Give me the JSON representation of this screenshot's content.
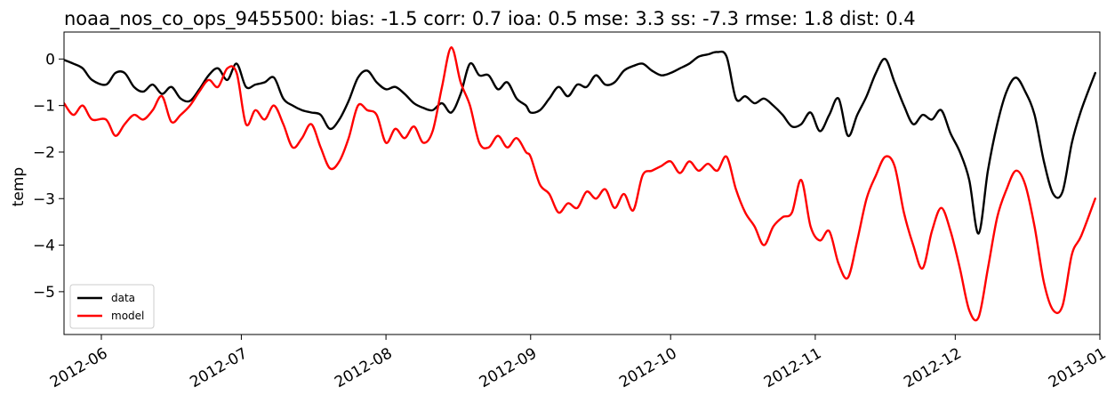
{
  "chart_data": {
    "type": "line",
    "title": "noaa_nos_co_ops_9455500: bias: -1.5  corr: 0.7  ioa: 0.5  mse: 3.3  ss: -7.3  rmse: 1.8  dist: 0.4",
    "xlabel": "",
    "ylabel": "temp",
    "xlim": [
      "2012-05-24",
      "2013-01-01"
    ],
    "ylim": [
      -5.92,
      0.58
    ],
    "x_ticks": [
      "2012-06-01",
      "2012-07-01",
      "2012-08-01",
      "2012-09-01",
      "2012-10-01",
      "2012-11-01",
      "2012-12-01",
      "2013-01-01"
    ],
    "x_tick_labels": [
      "2012-06",
      "2012-07",
      "2012-08",
      "2012-09",
      "2012-10",
      "2012-11",
      "2012-12",
      "2013-01"
    ],
    "y_ticks": [
      0,
      -1,
      -2,
      -3,
      -4,
      -5
    ],
    "y_tick_labels": [
      "0",
      "−1",
      "−2",
      "−3",
      "−4",
      "−5"
    ],
    "grid": false,
    "legend_position": "lower-left",
    "series": [
      {
        "name": "data",
        "color": "#000000",
        "points": [
          [
            "2012-05-24",
            -0.02
          ],
          [
            "2012-05-26",
            -0.1
          ],
          [
            "2012-05-28",
            -0.2
          ],
          [
            "2012-05-30",
            -0.45
          ],
          [
            "2012-06-02",
            -0.55
          ],
          [
            "2012-06-04",
            -0.3
          ],
          [
            "2012-06-06",
            -0.3
          ],
          [
            "2012-06-08",
            -0.6
          ],
          [
            "2012-06-10",
            -0.7
          ],
          [
            "2012-06-12",
            -0.55
          ],
          [
            "2012-06-14",
            -0.75
          ],
          [
            "2012-06-16",
            -0.6
          ],
          [
            "2012-06-18",
            -0.85
          ],
          [
            "2012-06-20",
            -0.9
          ],
          [
            "2012-06-22",
            -0.65
          ],
          [
            "2012-06-24",
            -0.35
          ],
          [
            "2012-06-26",
            -0.2
          ],
          [
            "2012-06-28",
            -0.45
          ],
          [
            "2012-06-30",
            -0.1
          ],
          [
            "2012-07-02",
            -0.6
          ],
          [
            "2012-07-04",
            -0.55
          ],
          [
            "2012-07-06",
            -0.5
          ],
          [
            "2012-07-08",
            -0.4
          ],
          [
            "2012-07-10",
            -0.85
          ],
          [
            "2012-07-12",
            -1.0
          ],
          [
            "2012-07-14",
            -1.1
          ],
          [
            "2012-07-16",
            -1.15
          ],
          [
            "2012-07-18",
            -1.2
          ],
          [
            "2012-07-20",
            -1.5
          ],
          [
            "2012-07-22",
            -1.3
          ],
          [
            "2012-07-24",
            -0.9
          ],
          [
            "2012-07-26",
            -0.4
          ],
          [
            "2012-07-28",
            -0.25
          ],
          [
            "2012-07-30",
            -0.5
          ],
          [
            "2012-08-01",
            -0.65
          ],
          [
            "2012-08-03",
            -0.6
          ],
          [
            "2012-08-05",
            -0.75
          ],
          [
            "2012-08-07",
            -0.95
          ],
          [
            "2012-08-09",
            -1.05
          ],
          [
            "2012-08-11",
            -1.1
          ],
          [
            "2012-08-13",
            -0.95
          ],
          [
            "2012-08-15",
            -1.15
          ],
          [
            "2012-08-17",
            -0.75
          ],
          [
            "2012-08-19",
            -0.1
          ],
          [
            "2012-08-21",
            -0.35
          ],
          [
            "2012-08-23",
            -0.35
          ],
          [
            "2012-08-25",
            -0.65
          ],
          [
            "2012-08-27",
            -0.5
          ],
          [
            "2012-08-29",
            -0.85
          ],
          [
            "2012-08-31",
            -1.0
          ],
          [
            "2012-09-01",
            -1.15
          ],
          [
            "2012-09-03",
            -1.1
          ],
          [
            "2012-09-05",
            -0.85
          ],
          [
            "2012-09-07",
            -0.6
          ],
          [
            "2012-09-09",
            -0.8
          ],
          [
            "2012-09-11",
            -0.55
          ],
          [
            "2012-09-13",
            -0.6
          ],
          [
            "2012-09-15",
            -0.35
          ],
          [
            "2012-09-17",
            -0.55
          ],
          [
            "2012-09-19",
            -0.5
          ],
          [
            "2012-09-21",
            -0.25
          ],
          [
            "2012-09-23",
            -0.15
          ],
          [
            "2012-09-25",
            -0.1
          ],
          [
            "2012-09-27",
            -0.25
          ],
          [
            "2012-09-29",
            -0.35
          ],
          [
            "2012-10-01",
            -0.3
          ],
          [
            "2012-10-03",
            -0.2
          ],
          [
            "2012-10-05",
            -0.1
          ],
          [
            "2012-10-07",
            0.05
          ],
          [
            "2012-10-09",
            0.1
          ],
          [
            "2012-10-11",
            0.15
          ],
          [
            "2012-10-13",
            0.05
          ],
          [
            "2012-10-15",
            -0.85
          ],
          [
            "2012-10-17",
            -0.8
          ],
          [
            "2012-10-19",
            -0.95
          ],
          [
            "2012-10-21",
            -0.85
          ],
          [
            "2012-10-23",
            -1.0
          ],
          [
            "2012-10-25",
            -1.2
          ],
          [
            "2012-10-27",
            -1.45
          ],
          [
            "2012-10-29",
            -1.4
          ],
          [
            "2012-10-31",
            -1.15
          ],
          [
            "2012-11-02",
            -1.55
          ],
          [
            "2012-11-04",
            -1.2
          ],
          [
            "2012-11-06",
            -0.85
          ],
          [
            "2012-11-08",
            -1.65
          ],
          [
            "2012-11-10",
            -1.2
          ],
          [
            "2012-11-12",
            -0.8
          ],
          [
            "2012-11-14",
            -0.3
          ],
          [
            "2012-11-16",
            0.0
          ],
          [
            "2012-11-18",
            -0.5
          ],
          [
            "2012-11-20",
            -1.0
          ],
          [
            "2012-11-22",
            -1.4
          ],
          [
            "2012-11-24",
            -1.2
          ],
          [
            "2012-11-26",
            -1.3
          ],
          [
            "2012-11-28",
            -1.1
          ],
          [
            "2012-11-30",
            -1.6
          ],
          [
            "2012-12-02",
            -2.0
          ],
          [
            "2012-12-04",
            -2.6
          ],
          [
            "2012-12-06",
            -3.75
          ],
          [
            "2012-12-08",
            -2.4
          ],
          [
            "2012-12-10",
            -1.4
          ],
          [
            "2012-12-12",
            -0.7
          ],
          [
            "2012-12-14",
            -0.4
          ],
          [
            "2012-12-16",
            -0.7
          ],
          [
            "2012-12-18",
            -1.2
          ],
          [
            "2012-12-20",
            -2.2
          ],
          [
            "2012-12-22",
            -2.9
          ],
          [
            "2012-12-24",
            -2.85
          ],
          [
            "2012-12-26",
            -1.8
          ],
          [
            "2012-12-28",
            -1.1
          ],
          [
            "2012-12-31",
            -0.3
          ]
        ]
      },
      {
        "name": "model",
        "color": "#ff0000",
        "points": [
          [
            "2012-05-24",
            -0.95
          ],
          [
            "2012-05-26",
            -1.2
          ],
          [
            "2012-05-28",
            -1.0
          ],
          [
            "2012-05-30",
            -1.3
          ],
          [
            "2012-06-02",
            -1.3
          ],
          [
            "2012-06-04",
            -1.65
          ],
          [
            "2012-06-06",
            -1.4
          ],
          [
            "2012-06-08",
            -1.2
          ],
          [
            "2012-06-10",
            -1.3
          ],
          [
            "2012-06-12",
            -1.1
          ],
          [
            "2012-06-14",
            -0.8
          ],
          [
            "2012-06-16",
            -1.35
          ],
          [
            "2012-06-18",
            -1.2
          ],
          [
            "2012-06-20",
            -1.0
          ],
          [
            "2012-06-22",
            -0.7
          ],
          [
            "2012-06-24",
            -0.45
          ],
          [
            "2012-06-26",
            -0.6
          ],
          [
            "2012-06-28",
            -0.2
          ],
          [
            "2012-06-30",
            -0.3
          ],
          [
            "2012-07-02",
            -1.4
          ],
          [
            "2012-07-04",
            -1.1
          ],
          [
            "2012-07-06",
            -1.3
          ],
          [
            "2012-07-08",
            -1.0
          ],
          [
            "2012-07-10",
            -1.4
          ],
          [
            "2012-07-12",
            -1.9
          ],
          [
            "2012-07-14",
            -1.7
          ],
          [
            "2012-07-16",
            -1.4
          ],
          [
            "2012-07-18",
            -1.9
          ],
          [
            "2012-07-20",
            -2.35
          ],
          [
            "2012-07-22",
            -2.2
          ],
          [
            "2012-07-24",
            -1.7
          ],
          [
            "2012-07-26",
            -1.0
          ],
          [
            "2012-07-28",
            -1.1
          ],
          [
            "2012-07-30",
            -1.2
          ],
          [
            "2012-08-01",
            -1.8
          ],
          [
            "2012-08-03",
            -1.5
          ],
          [
            "2012-08-05",
            -1.7
          ],
          [
            "2012-08-07",
            -1.45
          ],
          [
            "2012-08-09",
            -1.8
          ],
          [
            "2012-08-11",
            -1.55
          ],
          [
            "2012-08-13",
            -0.6
          ],
          [
            "2012-08-15",
            0.25
          ],
          [
            "2012-08-17",
            -0.5
          ],
          [
            "2012-08-19",
            -1.0
          ],
          [
            "2012-08-21",
            -1.8
          ],
          [
            "2012-08-23",
            -1.9
          ],
          [
            "2012-08-25",
            -1.65
          ],
          [
            "2012-08-27",
            -1.9
          ],
          [
            "2012-08-29",
            -1.7
          ],
          [
            "2012-08-31",
            -2.0
          ],
          [
            "2012-09-01",
            -2.1
          ],
          [
            "2012-09-03",
            -2.7
          ],
          [
            "2012-09-05",
            -2.9
          ],
          [
            "2012-09-07",
            -3.3
          ],
          [
            "2012-09-09",
            -3.1
          ],
          [
            "2012-09-11",
            -3.2
          ],
          [
            "2012-09-13",
            -2.85
          ],
          [
            "2012-09-15",
            -3.0
          ],
          [
            "2012-09-17",
            -2.8
          ],
          [
            "2012-09-19",
            -3.2
          ],
          [
            "2012-09-21",
            -2.9
          ],
          [
            "2012-09-23",
            -3.25
          ],
          [
            "2012-09-25",
            -2.5
          ],
          [
            "2012-09-27",
            -2.4
          ],
          [
            "2012-09-29",
            -2.3
          ],
          [
            "2012-10-01",
            -2.2
          ],
          [
            "2012-10-03",
            -2.45
          ],
          [
            "2012-10-05",
            -2.2
          ],
          [
            "2012-10-07",
            -2.4
          ],
          [
            "2012-10-09",
            -2.25
          ],
          [
            "2012-10-11",
            -2.4
          ],
          [
            "2012-10-13",
            -2.1
          ],
          [
            "2012-10-15",
            -2.8
          ],
          [
            "2012-10-17",
            -3.3
          ],
          [
            "2012-10-19",
            -3.6
          ],
          [
            "2012-10-21",
            -4.0
          ],
          [
            "2012-10-23",
            -3.6
          ],
          [
            "2012-10-25",
            -3.4
          ],
          [
            "2012-10-27",
            -3.3
          ],
          [
            "2012-10-29",
            -2.6
          ],
          [
            "2012-10-31",
            -3.6
          ],
          [
            "2012-11-02",
            -3.9
          ],
          [
            "2012-11-04",
            -3.7
          ],
          [
            "2012-11-06",
            -4.4
          ],
          [
            "2012-11-08",
            -4.7
          ],
          [
            "2012-11-10",
            -3.9
          ],
          [
            "2012-11-12",
            -3.0
          ],
          [
            "2012-11-14",
            -2.5
          ],
          [
            "2012-11-16",
            -2.1
          ],
          [
            "2012-11-18",
            -2.3
          ],
          [
            "2012-11-20",
            -3.3
          ],
          [
            "2012-11-22",
            -4.0
          ],
          [
            "2012-11-24",
            -4.5
          ],
          [
            "2012-11-26",
            -3.7
          ],
          [
            "2012-11-28",
            -3.2
          ],
          [
            "2012-11-30",
            -3.7
          ],
          [
            "2012-12-02",
            -4.5
          ],
          [
            "2012-12-04",
            -5.4
          ],
          [
            "2012-12-06",
            -5.55
          ],
          [
            "2012-12-08",
            -4.5
          ],
          [
            "2012-12-10",
            -3.4
          ],
          [
            "2012-12-12",
            -2.8
          ],
          [
            "2012-12-14",
            -2.4
          ],
          [
            "2012-12-16",
            -2.7
          ],
          [
            "2012-12-18",
            -3.6
          ],
          [
            "2012-12-20",
            -4.8
          ],
          [
            "2012-12-22",
            -5.4
          ],
          [
            "2012-12-24",
            -5.3
          ],
          [
            "2012-12-26",
            -4.2
          ],
          [
            "2012-12-28",
            -3.8
          ],
          [
            "2012-12-31",
            -3.0
          ]
        ]
      }
    ]
  }
}
